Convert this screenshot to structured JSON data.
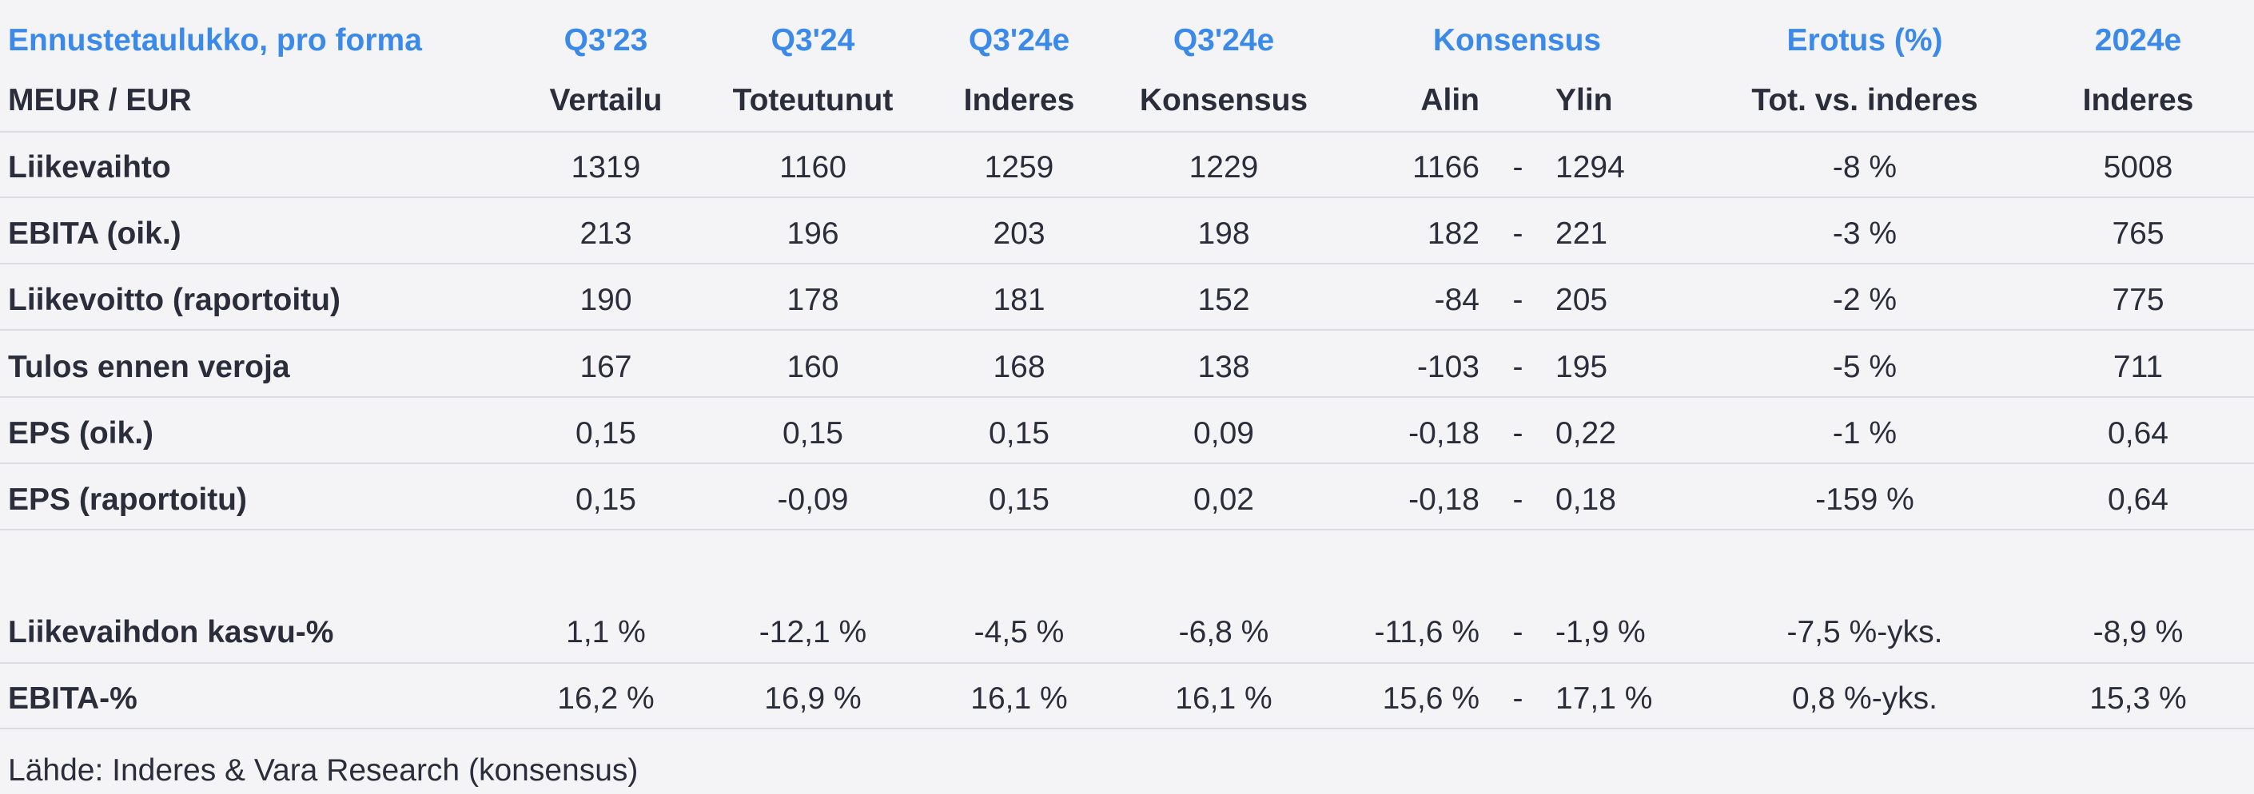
{
  "header_row1": {
    "title": "Ennustetaulukko, pro forma",
    "col1": "Q3'23",
    "col2": "Q3'24",
    "col3": "Q3'24e",
    "col4": "Q3'24e",
    "consensus": "Konsensus",
    "diff": "Erotus (%)",
    "col_year": "2024e"
  },
  "header_row2": {
    "unit": "MEUR / EUR",
    "col1": "Vertailu",
    "col2": "Toteutunut",
    "col3": "Inderes",
    "col4": "Konsensus",
    "low": "Alin",
    "high": "Ylin",
    "diff": "Tot. vs. inderes",
    "col_year": "Inderes"
  },
  "rows": [
    {
      "label": "Liikevaihto",
      "q323": "1319",
      "q324": "1160",
      "q324e_ind": "1259",
      "q324e_cons": "1229",
      "low": "1166",
      "dash": "-",
      "high": "1294",
      "diff": "-8 %",
      "y2024": "5008"
    },
    {
      "label": "EBITA (oik.)",
      "q323": "213",
      "q324": "196",
      "q324e_ind": "203",
      "q324e_cons": "198",
      "low": "182",
      "dash": "-",
      "high": "221",
      "diff": "-3 %",
      "y2024": "765"
    },
    {
      "label": "Liikevoitto (raportoitu)",
      "q323": "190",
      "q324": "178",
      "q324e_ind": "181",
      "q324e_cons": "152",
      "low": "-84",
      "dash": "-",
      "high": "205",
      "diff": "-2 %",
      "y2024": "775"
    },
    {
      "label": "Tulos ennen veroja",
      "q323": "167",
      "q324": "160",
      "q324e_ind": "168",
      "q324e_cons": "138",
      "low": "-103",
      "dash": "-",
      "high": "195",
      "diff": "-5 %",
      "y2024": "711"
    },
    {
      "label": "EPS (oik.)",
      "q323": "0,15",
      "q324": "0,15",
      "q324e_ind": "0,15",
      "q324e_cons": "0,09",
      "low": "-0,18",
      "dash": "-",
      "high": "0,22",
      "diff": "-1 %",
      "y2024": "0,64"
    },
    {
      "label": "EPS (raportoitu)",
      "q323": "0,15",
      "q324": "-0,09",
      "q324e_ind": "0,15",
      "q324e_cons": "0,02",
      "low": "-0,18",
      "dash": "-",
      "high": "0,18",
      "diff": "-159 %",
      "y2024": "0,64"
    }
  ],
  "ratio_rows": [
    {
      "label": "Liikevaihdon kasvu-%",
      "q323": "1,1 %",
      "q324": "-12,1 %",
      "q324e_ind": "-4,5 %",
      "q324e_cons": "-6,8 %",
      "low": "-11,6 %",
      "dash": "-",
      "high": "-1,9 %",
      "diff": "-7,5 %-yks.",
      "y2024": "-8,9 %"
    },
    {
      "label": "EBITA-%",
      "q323": "16,2 %",
      "q324": "16,9 %",
      "q324e_ind": "16,1 %",
      "q324e_cons": "16,1 %",
      "low": "15,6 %",
      "dash": "-",
      "high": "17,1 %",
      "diff": "0,8 %-yks.",
      "y2024": "15,3 %"
    }
  ],
  "source": "Lähde: Inderes & Vara Research  (konsensus)",
  "colors": {
    "accent": "#3b8aea",
    "text": "#2b2d3a",
    "background": "#f4f4f7",
    "divider": "#dcdde3"
  }
}
